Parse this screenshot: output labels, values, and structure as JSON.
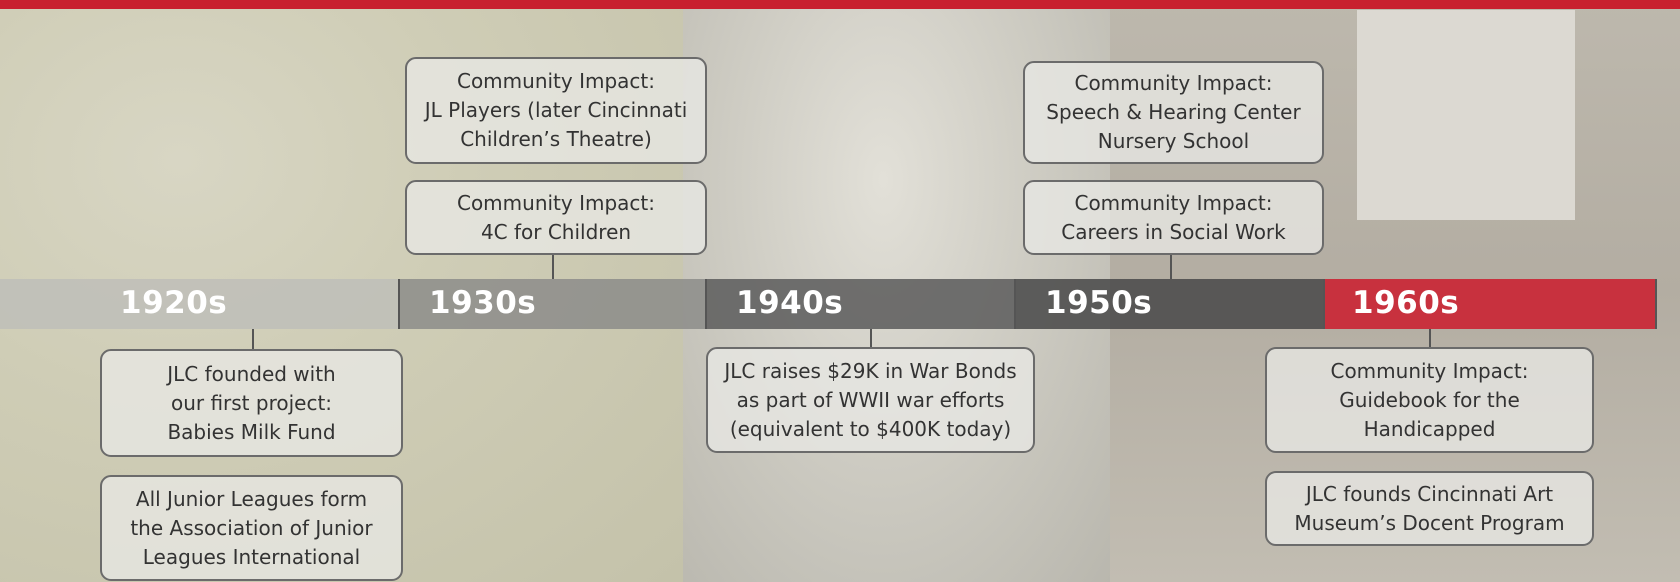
{
  "timeline": {
    "decades": [
      "1920s",
      "1930s",
      "1940s",
      "1950s",
      "1960s"
    ],
    "events": [
      {
        "decade": "1920s",
        "lines": [
          "JLC founded with",
          "our first project:",
          "Babies Milk Fund"
        ]
      },
      {
        "decade": "1920s",
        "lines": [
          "All Junior Leagues form",
          "the Association of Junior",
          "Leagues International"
        ]
      },
      {
        "decade": "1930s",
        "lines": [
          "Community Impact:",
          "JL Players (later Cincinnati",
          "Children’s Theatre)"
        ]
      },
      {
        "decade": "1930s",
        "lines": [
          "Community Impact:",
          "4C for Children"
        ]
      },
      {
        "decade": "1940s",
        "lines": [
          "JLC raises $29K in War Bonds",
          "as part of WWII war efforts",
          "(equivalent to $400K today)"
        ]
      },
      {
        "decade": "1950s",
        "lines": [
          "Community Impact:",
          "Speech & Hearing Center",
          "Nursery School"
        ]
      },
      {
        "decade": "1950s",
        "lines": [
          "Community Impact:",
          "Careers in Social Work"
        ]
      },
      {
        "decade": "1960s",
        "lines": [
          "Community Impact:",
          "Guidebook for the",
          "Handicapped"
        ]
      },
      {
        "decade": "1960s",
        "lines": [
          "JLC founds Cincinnati Art",
          "Museum’s Docent Program"
        ]
      }
    ]
  }
}
